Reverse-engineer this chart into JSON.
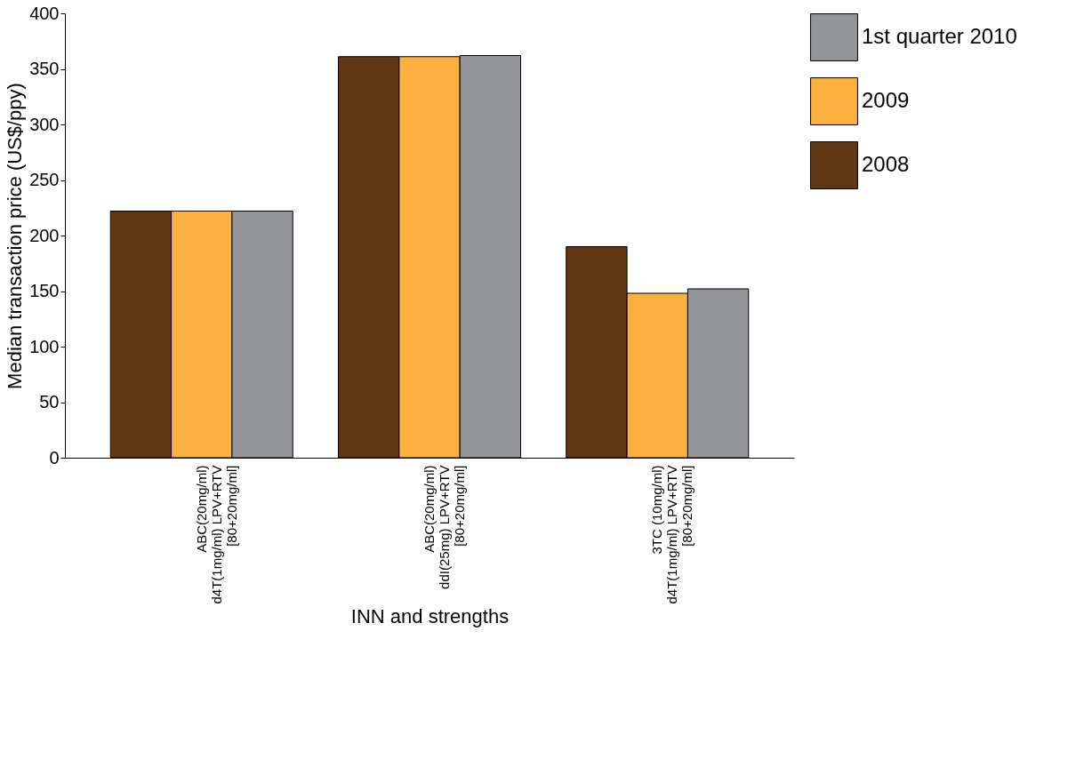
{
  "chart_data": {
    "type": "bar",
    "xlabel": "INN and strengths",
    "ylabel": "Median transaction price (US$/ppy)",
    "categories": [
      "ABC(20mg/ml)\nd4T(1mg/ml) LPV+RTV\n[80+20mg/ml]",
      "ABC(20mg/ml)\nddI(25mg) LPV+RTV\n[80+20mg/ml]",
      "3TC (10mg/ml)\nd4T(1mg/ml) LPV+RTV\n[80+20mg/ml]"
    ],
    "series": [
      {
        "name": "2008",
        "color": "#603813",
        "values": [
          222,
          361,
          190
        ]
      },
      {
        "name": "2009",
        "color": "#fbb040",
        "values": [
          222,
          361,
          148
        ]
      },
      {
        "name": "1st quarter 2010",
        "color": "#939598",
        "values": [
          222,
          362,
          152
        ]
      }
    ],
    "ylim": [
      0,
      400
    ],
    "yticks": [
      0,
      50,
      100,
      150,
      200,
      250,
      300,
      350,
      400
    ],
    "grid": false,
    "legend": "top right"
  }
}
